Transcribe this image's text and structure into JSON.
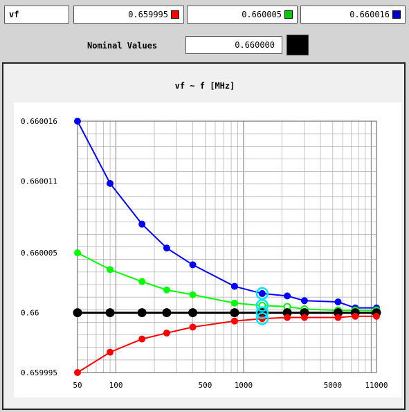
{
  "header": {
    "param_label": "vf",
    "values": [
      "0.659995",
      "0.660005",
      "0.660016"
    ],
    "swatch_colors": [
      "#ff0000",
      "#00cc00",
      "#0000cc"
    ]
  },
  "nominal": {
    "label": "Nominal Values",
    "value": "0.660000",
    "swatch_color": "#000000"
  },
  "chart_data": {
    "type": "line",
    "title": "vf ~ f [MHz]",
    "xscale": "log",
    "xlim": [
      50,
      11000
    ],
    "ylim": [
      0.659995,
      0.660016
    ],
    "xticks": [
      50,
      100,
      500,
      1000,
      5000,
      11000
    ],
    "yticks": [
      0.659995,
      0.66,
      0.660005,
      0.660011,
      0.660016
    ],
    "xtick_labels": [
      "50",
      "100",
      "500",
      "1000",
      "5000",
      "11000"
    ],
    "ytick_labels": [
      "0.659995",
      "0.66",
      "0.660005",
      "0.660011",
      "0.660016"
    ],
    "grid": true,
    "x": [
      50,
      90,
      160,
      250,
      400,
      850,
      1400,
      2200,
      3000,
      5500,
      7500,
      11000
    ],
    "series": [
      {
        "color": "#0000ff",
        "values": [
          0.660016,
          0.6600108,
          0.6600074,
          0.6600054,
          0.660004,
          0.6600022,
          0.6600016,
          0.6600014,
          0.660001,
          0.6600009,
          0.6600004,
          0.6600004
        ]
      },
      {
        "color": "#00ff00",
        "values": [
          0.660005,
          0.6600036,
          0.6600026,
          0.6600019,
          0.6600015,
          0.6600008,
          0.6600006,
          0.6600005,
          0.6600003,
          0.6600002,
          0.6600002,
          0.6600002
        ]
      },
      {
        "color": "#000000",
        "values": [
          0.66,
          0.66,
          0.66,
          0.66,
          0.66,
          0.66,
          0.66,
          0.66,
          0.66,
          0.66,
          0.66,
          0.66
        ]
      },
      {
        "color": "#ff0000",
        "values": [
          0.659995,
          0.6599967,
          0.6599978,
          0.6599983,
          0.6599988,
          0.6599993,
          0.6599995,
          0.6599996,
          0.6599996,
          0.6599996,
          0.6599997,
          0.6599997
        ]
      }
    ],
    "highlight_x": 1400,
    "highlight_color": "#00e5ff"
  }
}
